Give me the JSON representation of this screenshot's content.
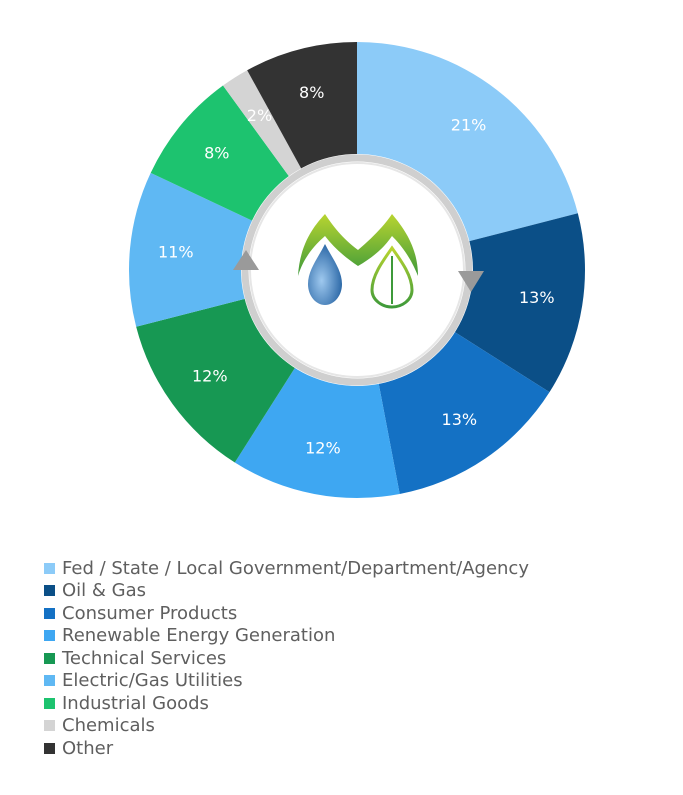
{
  "chart_data": {
    "type": "pie",
    "categories": [
      "Fed / State / Local Government/Department/Agency",
      "Oil & Gas",
      "Consumer Products",
      "Renewable Energy Generation",
      "Technical Services",
      "Electric/Gas Utilities",
      "Industrial Goods",
      "Chemicals",
      "Other"
    ],
    "values": [
      21,
      13,
      13,
      12,
      12,
      11,
      8,
      2,
      8
    ],
    "data_labels": [
      "21%",
      "13%",
      "13%",
      "12%",
      "12%",
      "11%",
      "8%",
      "2%",
      "8%"
    ],
    "colors": [
      "#8ccbf8",
      "#0b4f87",
      "#1471c4",
      "#3ea7f2",
      "#179853",
      "#5fb8f3",
      "#1dc36f",
      "#d4d4d4",
      "#333333"
    ],
    "title": "",
    "legend_placement": "bottom-left",
    "donut": true,
    "center_icon": "droplet-leaf-logo-icon"
  }
}
